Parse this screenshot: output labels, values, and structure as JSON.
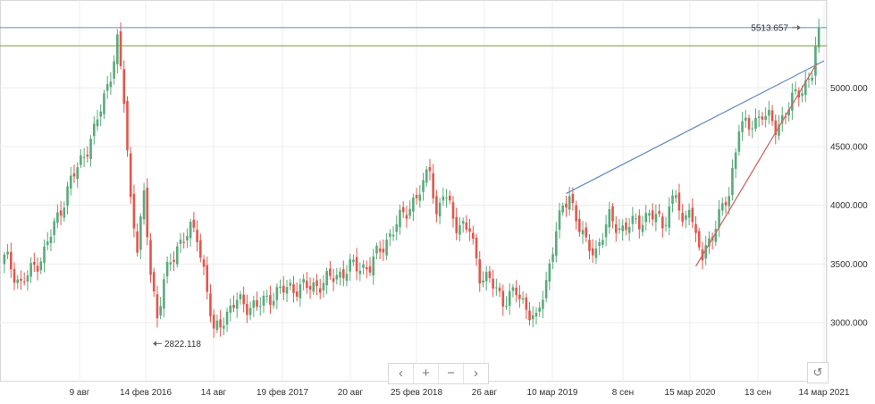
{
  "chart_data": {
    "type": "candlestick",
    "y_ticks": [
      "3000.000",
      "3500.000",
      "4000.000",
      "4500.000",
      "5000.000"
    ],
    "x_ticks": [
      "9 авг",
      "14 фев 2016",
      "14 авг",
      "19 фев 2017",
      "20 авг",
      "25 фев 2018",
      "26 авг",
      "10 мар 2019",
      "8 сен",
      "15 мар 2020",
      "13 сен",
      "14 мар 2021"
    ],
    "ylim": [
      2630,
      5620
    ],
    "current_price": "5513.657",
    "reference_price": "5357.744",
    "current_annotation": "5513.657",
    "low_annotation": "2822.118",
    "grid": true,
    "up_color": "#5aaa7c",
    "down_color": "#e2574c",
    "key_points": [
      {
        "i": 0,
        "v": 3580
      },
      {
        "i": 5,
        "v": 3320
      },
      {
        "i": 12,
        "v": 3600
      },
      {
        "i": 20,
        "v": 4200
      },
      {
        "i": 27,
        "v": 4620
      },
      {
        "i": 32,
        "v": 5130
      },
      {
        "i": 34,
        "v": 5380
      },
      {
        "i": 36,
        "v": 4900
      },
      {
        "i": 38,
        "v": 4050
      },
      {
        "i": 40,
        "v": 3650
      },
      {
        "i": 42,
        "v": 4050
      },
      {
        "i": 44,
        "v": 3450
      },
      {
        "i": 46,
        "v": 3050
      },
      {
        "i": 48,
        "v": 3350
      },
      {
        "i": 52,
        "v": 3660
      },
      {
        "i": 56,
        "v": 3780
      },
      {
        "i": 58,
        "v": 3750
      },
      {
        "i": 60,
        "v": 3450
      },
      {
        "i": 63,
        "v": 2900
      },
      {
        "i": 66,
        "v": 3050
      },
      {
        "i": 70,
        "v": 3180
      },
      {
        "i": 76,
        "v": 3130
      },
      {
        "i": 80,
        "v": 3230
      },
      {
        "i": 86,
        "v": 3300
      },
      {
        "i": 92,
        "v": 3300
      },
      {
        "i": 98,
        "v": 3370
      },
      {
        "i": 104,
        "v": 3470
      },
      {
        "i": 110,
        "v": 3480
      },
      {
        "i": 116,
        "v": 3750
      },
      {
        "i": 122,
        "v": 4000
      },
      {
        "i": 126,
        "v": 4150
      },
      {
        "i": 128,
        "v": 4350
      },
      {
        "i": 130,
        "v": 3900
      },
      {
        "i": 132,
        "v": 4100
      },
      {
        "i": 136,
        "v": 3850
      },
      {
        "i": 140,
        "v": 3780
      },
      {
        "i": 143,
        "v": 3420
      },
      {
        "i": 146,
        "v": 3350
      },
      {
        "i": 150,
        "v": 3200
      },
      {
        "i": 154,
        "v": 3250
      },
      {
        "i": 158,
        "v": 3100
      },
      {
        "i": 160,
        "v": 3000
      },
      {
        "i": 163,
        "v": 3350
      },
      {
        "i": 166,
        "v": 3800
      },
      {
        "i": 170,
        "v": 4100
      },
      {
        "i": 172,
        "v": 3900
      },
      {
        "i": 175,
        "v": 3650
      },
      {
        "i": 178,
        "v": 3620
      },
      {
        "i": 182,
        "v": 3880
      },
      {
        "i": 186,
        "v": 3800
      },
      {
        "i": 190,
        "v": 3850
      },
      {
        "i": 194,
        "v": 3920
      },
      {
        "i": 198,
        "v": 3850
      },
      {
        "i": 202,
        "v": 4100
      },
      {
        "i": 204,
        "v": 3800
      },
      {
        "i": 206,
        "v": 4050
      },
      {
        "i": 208,
        "v": 3700
      },
      {
        "i": 210,
        "v": 3550
      },
      {
        "i": 214,
        "v": 3850
      },
      {
        "i": 218,
        "v": 4080
      },
      {
        "i": 221,
        "v": 4700
      },
      {
        "i": 224,
        "v": 4650
      },
      {
        "i": 228,
        "v": 4800
      },
      {
        "i": 232,
        "v": 4650
      },
      {
        "i": 236,
        "v": 4850
      },
      {
        "i": 240,
        "v": 5000
      },
      {
        "i": 243,
        "v": 5130
      },
      {
        "i": 245,
        "v": 5513
      }
    ]
  },
  "overlays": {
    "resistance_color": "#6c8fc4",
    "support_color": "#c96b63",
    "current_color": "#4a90d9",
    "reference_color": "#7d9a3c"
  },
  "controls": {
    "prev_icon": "‹",
    "zoom_in_icon": "+",
    "zoom_out_icon": "−",
    "next_icon": "›",
    "reset_icon": "↺"
  }
}
